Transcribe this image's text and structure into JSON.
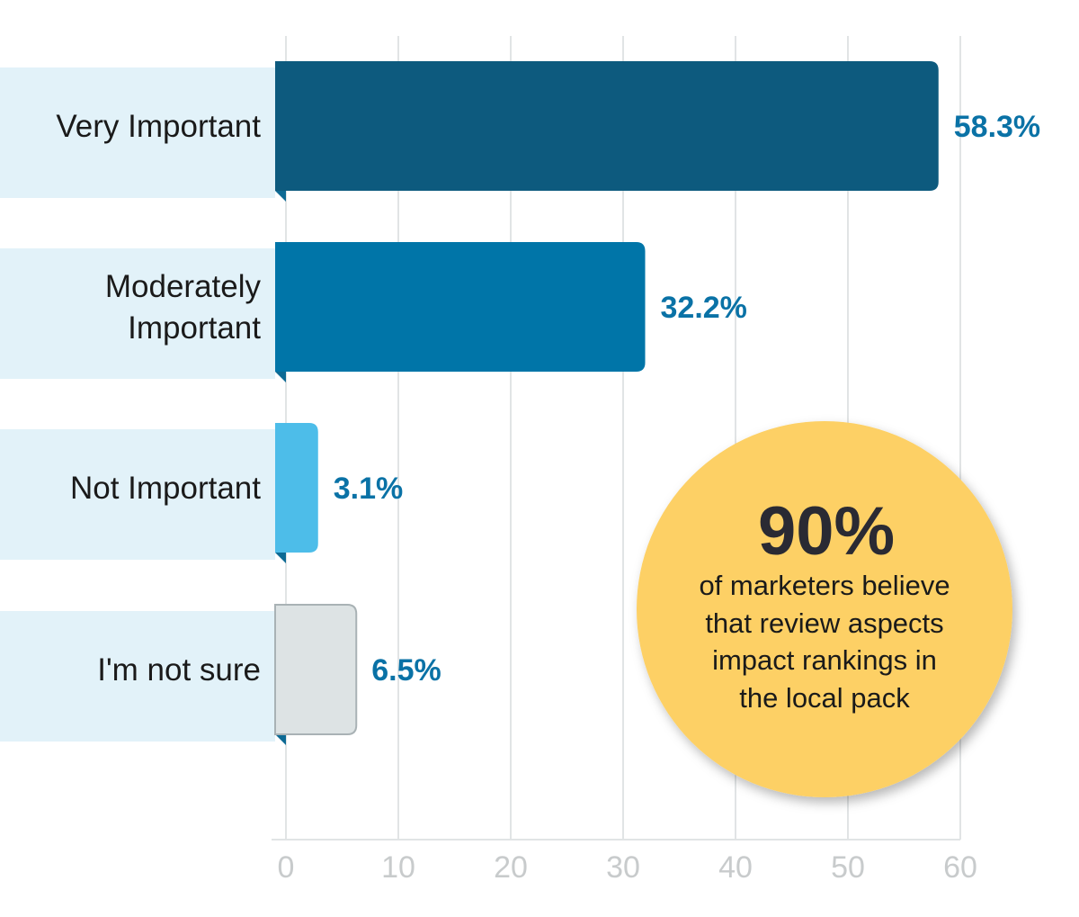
{
  "chart_data": {
    "type": "bar",
    "orientation": "horizontal",
    "categories": [
      "Very Important",
      "Moderately Important",
      "Not Important",
      "I'm not sure"
    ],
    "category_lines": [
      [
        "Very Important"
      ],
      [
        "Moderately",
        "Important"
      ],
      [
        "Not Important"
      ],
      [
        "I'm not sure"
      ]
    ],
    "values": [
      58.3,
      32.2,
      3.1,
      6.5
    ],
    "value_labels": [
      "58.3%",
      "32.2%",
      "3.1%",
      "6.5%"
    ],
    "bar_colors": [
      "#0d5a7e",
      "#0075a8",
      "#4dbde9",
      "#dde3e4"
    ],
    "xlim": [
      0,
      60
    ],
    "x_ticks": [
      "0",
      "10",
      "20",
      "30",
      "40",
      "50",
      "60"
    ],
    "grid": true,
    "xlabel": "",
    "ylabel": ""
  },
  "callout": {
    "headline": "90%",
    "lines": [
      "of marketers believe",
      "that review aspects",
      "impact rankings in",
      "the local pack"
    ],
    "color": "#fdd065"
  }
}
